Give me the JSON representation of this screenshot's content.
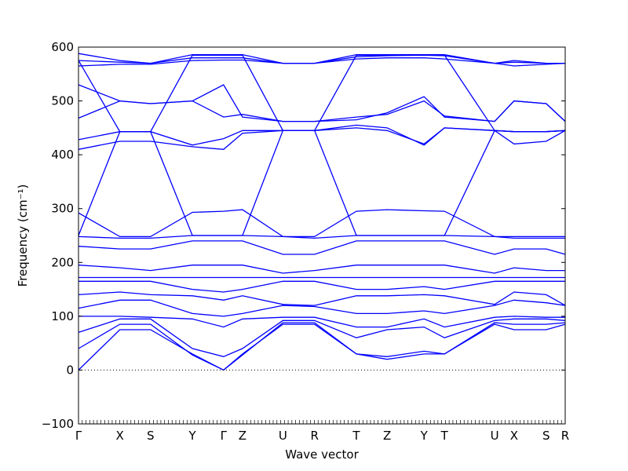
{
  "chart_data": {
    "type": "line",
    "title": "",
    "xlabel": "Wave vector",
    "ylabel": "Frequency (cm⁻¹)",
    "ylim": [
      -100,
      600
    ],
    "y_ticks": [
      -100,
      0,
      100,
      200,
      300,
      400,
      500,
      600
    ],
    "x_path": [
      "Γ",
      "X",
      "S",
      "Y",
      "Γ",
      "Z",
      "U",
      "R",
      "T",
      "Z",
      "Y",
      "T",
      "U",
      "X",
      "S",
      "R"
    ],
    "x_path_positions": [
      0,
      0.085,
      0.148,
      0.234,
      0.298,
      0.337,
      0.42,
      0.485,
      0.571,
      0.634,
      0.71,
      0.752,
      0.855,
      0.895,
      0.961,
      1.0
    ],
    "grid": false,
    "legend": "none",
    "zero_line": {
      "y": 0,
      "style": "dotted"
    },
    "series_color": "#0000ff",
    "series": [
      {
        "x": [
          0,
          0.085,
          0.148,
          0.234,
          0.298,
          0.337,
          0.42,
          0.485,
          0.571,
          0.634,
          0.71,
          0.752,
          0.855,
          0.895,
          0.961,
          1.0
        ],
        "y": [
          0,
          75,
          75,
          30,
          0,
          30,
          85,
          85,
          30,
          20,
          30,
          30,
          85,
          75,
          75,
          85
        ]
      },
      {
        "x": [
          0,
          0.085,
          0.148,
          0.234,
          0.298,
          0.337,
          0.42,
          0.485,
          0.571,
          0.634,
          0.71,
          0.752,
          0.855,
          0.895,
          0.961,
          1.0
        ],
        "y": [
          40,
          85,
          85,
          28,
          0,
          28,
          88,
          88,
          30,
          25,
          35,
          30,
          88,
          85,
          85,
          88
        ]
      },
      {
        "x": [
          0,
          0.085,
          0.148,
          0.234,
          0.298,
          0.337,
          0.42,
          0.485,
          0.571,
          0.634,
          0.71,
          0.752,
          0.855,
          0.895,
          0.961,
          1.0
        ],
        "y": [
          70,
          95,
          95,
          40,
          25,
          40,
          92,
          92,
          60,
          75,
          80,
          60,
          92,
          95,
          95,
          92
        ]
      },
      {
        "x": [
          0,
          0.085,
          0.148,
          0.234,
          0.298,
          0.337,
          0.42,
          0.485,
          0.571,
          0.634,
          0.71,
          0.752,
          0.855,
          0.895,
          0.961,
          1.0
        ],
        "y": [
          100,
          100,
          98,
          95,
          80,
          95,
          98,
          98,
          80,
          80,
          95,
          80,
          98,
          100,
          98,
          98
        ]
      },
      {
        "x": [
          0,
          0.085,
          0.148,
          0.234,
          0.298,
          0.337,
          0.42,
          0.485,
          0.571,
          0.634,
          0.71,
          0.752,
          0.855,
          0.895,
          0.961,
          1.0
        ],
        "y": [
          115,
          130,
          130,
          105,
          100,
          105,
          120,
          118,
          105,
          105,
          110,
          105,
          120,
          130,
          125,
          120
        ]
      },
      {
        "x": [
          0,
          0.085,
          0.148,
          0.234,
          0.298,
          0.337,
          0.42,
          0.485,
          0.571,
          0.634,
          0.71,
          0.752,
          0.855,
          0.895,
          0.961,
          1.0
        ],
        "y": [
          140,
          145,
          140,
          138,
          130,
          138,
          122,
          120,
          138,
          138,
          140,
          138,
          122,
          145,
          140,
          120
        ]
      },
      {
        "x": [
          0,
          0.085,
          0.148,
          0.234,
          0.298,
          0.337,
          0.42,
          0.485,
          0.571,
          0.634,
          0.71,
          0.752,
          0.855,
          0.895,
          0.961,
          1.0
        ],
        "y": [
          165,
          165,
          165,
          150,
          145,
          150,
          165,
          165,
          150,
          150,
          155,
          150,
          165,
          165,
          165,
          165
        ]
      },
      {
        "x": [
          0,
          0.085,
          0.148,
          0.234,
          0.298,
          0.337,
          0.42,
          0.485,
          0.571,
          0.634,
          0.71,
          0.752,
          0.855,
          0.895,
          0.961,
          1.0
        ],
        "y": [
          172,
          172,
          172,
          172,
          172,
          172,
          172,
          172,
          172,
          172,
          172,
          172,
          172,
          172,
          172,
          172
        ]
      },
      {
        "x": [
          0,
          0.085,
          0.148,
          0.234,
          0.298,
          0.337,
          0.42,
          0.485,
          0.571,
          0.634,
          0.71,
          0.752,
          0.855,
          0.895,
          0.961,
          1.0
        ],
        "y": [
          195,
          190,
          185,
          195,
          195,
          195,
          180,
          185,
          195,
          195,
          195,
          195,
          180,
          190,
          185,
          185
        ]
      },
      {
        "x": [
          0,
          0.085,
          0.148,
          0.234,
          0.298,
          0.337,
          0.42,
          0.485,
          0.571,
          0.634,
          0.71,
          0.752,
          0.855,
          0.895,
          0.961,
          1.0
        ],
        "y": [
          230,
          225,
          225,
          240,
          240,
          240,
          215,
          215,
          240,
          240,
          240,
          240,
          215,
          225,
          225,
          215
        ]
      },
      {
        "x": [
          0,
          0.085,
          0.148,
          0.234,
          0.298,
          0.337,
          0.42,
          0.485,
          0.571,
          0.634,
          0.71,
          0.752,
          0.855,
          0.895,
          0.961,
          1.0
        ],
        "y": [
          248,
          245,
          245,
          250,
          250,
          250,
          248,
          245,
          250,
          250,
          250,
          250,
          248,
          245,
          245,
          245
        ]
      },
      {
        "x": [
          0,
          0.085,
          0.148,
          0.234,
          0.298,
          0.337,
          0.42,
          0.485,
          0.571,
          0.634,
          0.71,
          0.752,
          0.855,
          0.895,
          0.961,
          1.0
        ],
        "y": [
          292,
          248,
          248,
          293,
          295,
          298,
          248,
          248,
          295,
          298,
          296,
          295,
          248,
          248,
          248,
          248
        ]
      },
      {
        "x": [
          0,
          0.085,
          0.148,
          0.234,
          0.298,
          0.337,
          0.42,
          0.485,
          0.571,
          0.634,
          0.71,
          0.752,
          0.855,
          0.895,
          0.961,
          1.0
        ],
        "y": [
          410,
          425,
          425,
          415,
          410,
          440,
          445,
          445,
          450,
          445,
          420,
          450,
          445,
          420,
          425,
          445
        ]
      },
      {
        "x": [
          0,
          0.085,
          0.148,
          0.234,
          0.298,
          0.337,
          0.42,
          0.485,
          0.571,
          0.634,
          0.71,
          0.752,
          0.855,
          0.895,
          0.961,
          1.0
        ],
        "y": [
          428,
          443,
          443,
          418,
          430,
          445,
          445,
          445,
          455,
          450,
          418,
          450,
          445,
          443,
          443,
          445
        ]
      },
      {
        "x": [
          0,
          0.085,
          0.148,
          0.234,
          0.298,
          0.337,
          0.42,
          0.485,
          0.571,
          0.634,
          0.71,
          0.752,
          0.855,
          0.895,
          0.961,
          1.0
        ],
        "y": [
          468,
          500,
          495,
          500,
          470,
          475,
          462,
          462,
          470,
          475,
          500,
          472,
          462,
          500,
          495,
          462
        ]
      },
      {
        "x": [
          0,
          0.085,
          0.148,
          0.234,
          0.298,
          0.337,
          0.42,
          0.485,
          0.571,
          0.634,
          0.71,
          0.752,
          0.855,
          0.895,
          0.961,
          1.0
        ],
        "y": [
          530,
          500,
          495,
          500,
          530,
          470,
          462,
          462,
          465,
          478,
          508,
          470,
          462,
          500,
          495,
          462
        ]
      },
      {
        "x": [
          0,
          0.085,
          0.148,
          0.234,
          0.298,
          0.337,
          0.42,
          0.485,
          0.571,
          0.634,
          0.71,
          0.752,
          0.855,
          0.895,
          0.961,
          1.0
        ],
        "y": [
          565,
          568,
          568,
          575,
          576,
          576,
          570,
          570,
          578,
          580,
          580,
          578,
          570,
          565,
          568,
          570
        ]
      },
      {
        "x": [
          0,
          0.085,
          0.148,
          0.234,
          0.298,
          0.337,
          0.42,
          0.485,
          0.571,
          0.634,
          0.71,
          0.752,
          0.855,
          0.895,
          0.961,
          1.0
        ],
        "y": [
          575,
          572,
          570,
          580,
          580,
          580,
          570,
          570,
          582,
          584,
          585,
          584,
          570,
          572,
          570,
          570
        ]
      },
      {
        "x": [
          0,
          0.085,
          0.148,
          0.234,
          0.298,
          0.337,
          0.42,
          0.485,
          0.571,
          0.634,
          0.71,
          0.752,
          0.855,
          0.895,
          0.961,
          1.0
        ],
        "y": [
          588,
          575,
          570,
          586,
          586,
          586,
          570,
          570,
          586,
          586,
          586,
          586,
          570,
          575,
          570,
          570
        ]
      },
      {
        "x": [
          0,
          0.085,
          0.148,
          0.234,
          0.298,
          0.337,
          0.42,
          0.485,
          0.571,
          0.634,
          0.71,
          0.752,
          0.855,
          0.895,
          0.961,
          1.0
        ],
        "y": [
          250,
          443,
          443,
          250,
          250,
          250,
          445,
          445,
          250,
          250,
          250,
          250,
          445,
          443,
          443,
          445
        ]
      },
      {
        "x": [
          0,
          0.085,
          0.148,
          0.234,
          0.298,
          0.337,
          0.42,
          0.485,
          0.571,
          0.634,
          0.71,
          0.752,
          0.855,
          0.895,
          0.961,
          1.0
        ],
        "y": [
          575,
          443,
          443,
          585,
          585,
          585,
          445,
          445,
          585,
          585,
          585,
          585,
          445,
          443,
          443,
          445
        ]
      }
    ]
  }
}
